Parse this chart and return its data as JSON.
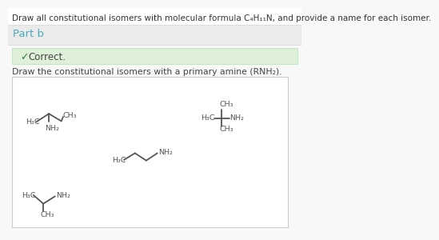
{
  "title": "Draw all constitutional isomers with molecular formula C₄H₁₁N, and provide a name for each isomer.",
  "part_b_label": "Part b",
  "correct_text": "Correct.",
  "instruction": "Draw the constitutional isomers with a primary amine (RNH₂).",
  "bg_color": "#f8f8f8",
  "part_b_bg": "#ebebeb",
  "correct_bg": "#dff0d8",
  "correct_border": "#c3e6cb",
  "box_border": "#cccccc",
  "text_color": "#444444",
  "title_color": "#333333",
  "part_b_color": "#4aabba",
  "line_color": "#555555",
  "check_color": "#3a7d3a",
  "font_size_title": 7.5,
  "font_size_partb": 9.5,
  "font_size_correct": 8.5,
  "font_size_instr": 7.8,
  "font_size_chem": 6.8
}
